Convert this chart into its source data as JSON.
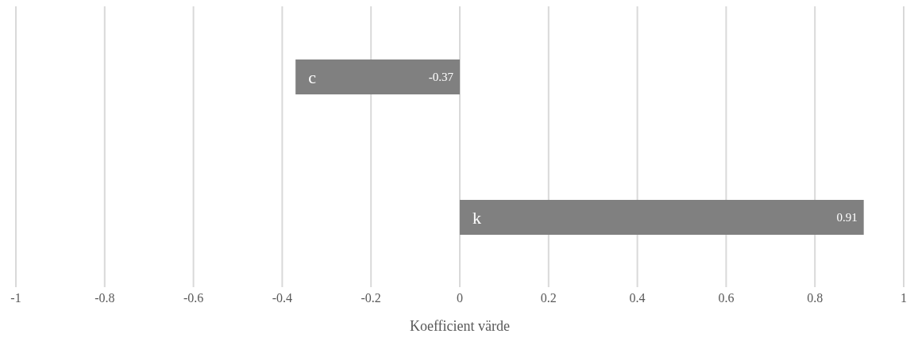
{
  "chart_data": {
    "type": "bar",
    "orientation": "horizontal",
    "categories": [
      "c",
      "k"
    ],
    "values": [
      -0.37,
      0.91
    ],
    "color": "#808080",
    "data_labels": true,
    "xlim": [
      -1,
      1
    ],
    "xticks": [
      -1,
      -0.8,
      -0.6,
      -0.4,
      -0.2,
      0,
      0.2,
      0.4,
      0.6,
      0.8,
      1
    ],
    "xlabel": "Koefficient värde",
    "grid": "x",
    "legend": false
  }
}
